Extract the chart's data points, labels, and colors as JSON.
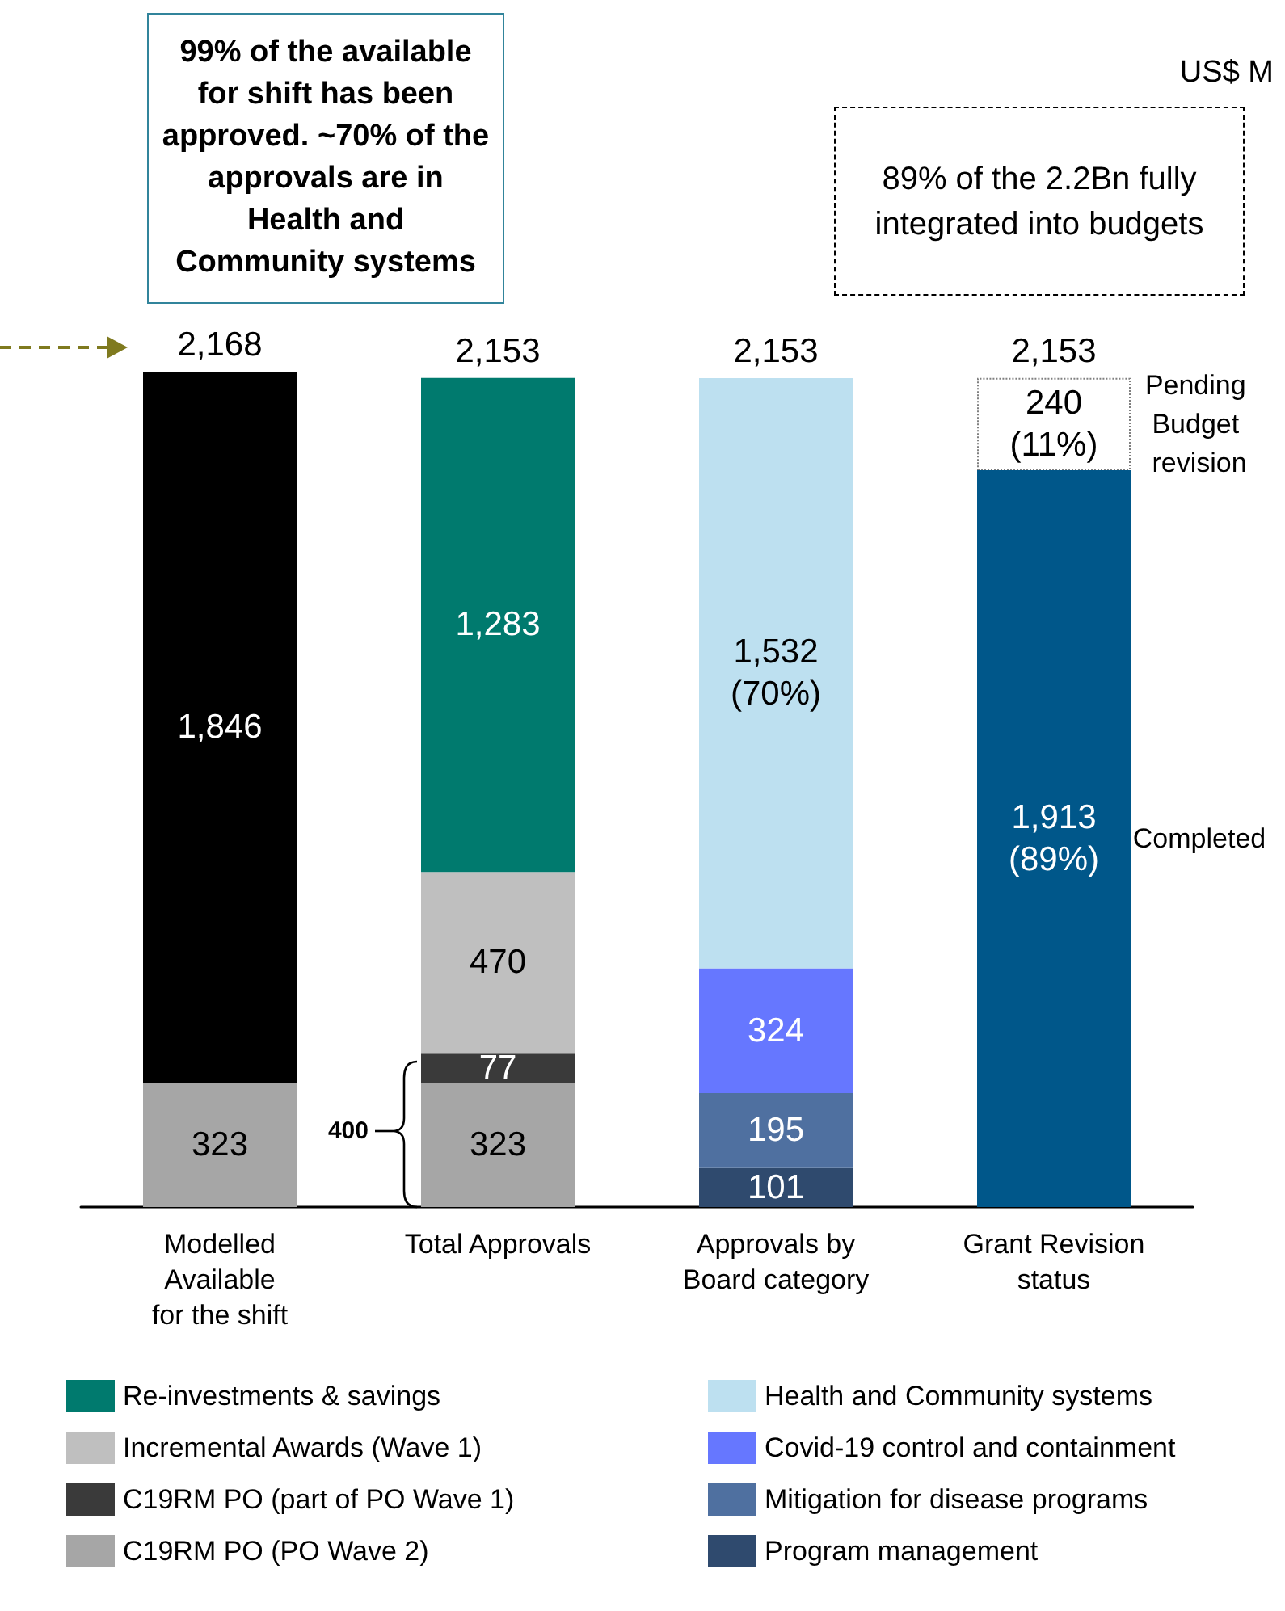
{
  "chart_data": {
    "type": "bar",
    "stacked": true,
    "categories": [
      "Modelled\nAvailable\nfor the shift",
      "Total Approvals",
      "Approvals by\nBoard category",
      "Grant Revision\nstatus"
    ],
    "series": [
      {
        "name": "C19RM PO (PO Wave 2)",
        "color": "#a6a6a6",
        "values": [
          323,
          323,
          null,
          null
        ],
        "value_labels": [
          "323",
          "323",
          null,
          null
        ]
      },
      {
        "name": "C19RM PO (part of PO Wave 1)",
        "color": "#3a3a3a",
        "values": [
          null,
          77,
          null,
          null
        ],
        "value_labels": [
          null,
          "77",
          null,
          null
        ]
      },
      {
        "name": "Incremental Awards (Wave 1)",
        "color": "#bfbfbf",
        "values": [
          null,
          470,
          null,
          null
        ],
        "value_labels": [
          null,
          "470",
          null,
          null
        ]
      },
      {
        "name": "Re-investments & savings",
        "color": "#007a6e",
        "values": [
          null,
          1283,
          null,
          null
        ],
        "value_labels": [
          null,
          "1,283",
          null,
          null
        ]
      },
      {
        "color": "#000000",
        "values": [
          1846,
          null,
          null,
          null
        ],
        "value_labels": [
          "1,846",
          null,
          null,
          null
        ]
      },
      {
        "name": "Program management",
        "color": "#2f4a6e",
        "values": [
          null,
          null,
          101,
          null
        ],
        "value_labels": [
          null,
          null,
          "101",
          null
        ]
      },
      {
        "name": "Mitigation for disease programs",
        "color": "#4f70a0",
        "values": [
          null,
          null,
          195,
          null
        ],
        "value_labels": [
          null,
          null,
          "195",
          null
        ]
      },
      {
        "name": "Covid-19 control and containment",
        "color": "#6677ff",
        "values": [
          null,
          null,
          324,
          null
        ],
        "value_labels": [
          null,
          null,
          "324",
          null
        ]
      },
      {
        "name": "Health and Community systems",
        "color": "#bde0f0",
        "values": [
          null,
          null,
          1532,
          null
        ],
        "value_labels": [
          null,
          null,
          "1,532\n(70%)",
          null
        ]
      },
      {
        "name": "Completed",
        "color": "#00578a",
        "values": [
          null,
          null,
          null,
          1913
        ],
        "value_labels": [
          null,
          null,
          null,
          "1,913\n(89%)"
        ]
      },
      {
        "name": "Pending Budget revision",
        "color": "#ffffff",
        "values": [
          null,
          null,
          null,
          240
        ],
        "value_labels": [
          null,
          null,
          null,
          "240\n(11%)"
        ]
      }
    ],
    "totals": [
      "2,168",
      "2,153",
      "2,153",
      "2,153"
    ],
    "legend": "bottom",
    "annotations": [
      "US$ M",
      "99% of the available for shift has been approved. ~70% of the approvals are in Health and Community systems",
      "89% of the 2.2Bn fully integrated into budgets",
      "400"
    ]
  }
}
